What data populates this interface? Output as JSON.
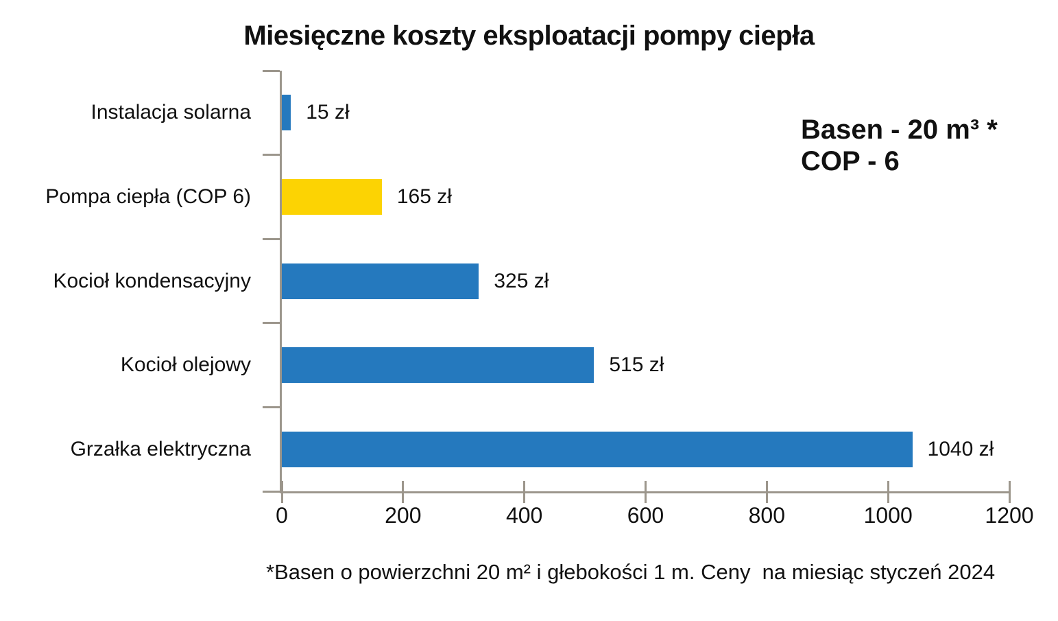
{
  "chart_data": {
    "type": "bar",
    "orientation": "horizontal",
    "title": "Miesięczne koszty eksploatacji pompy ciepła",
    "categories": [
      "Instalacja solarna",
      "Pompa ciepła (COP 6)",
      "Kocioł kondensacyjny",
      "Kocioł olejowy",
      "Grzałka elektryczna"
    ],
    "values": [
      15,
      165,
      325,
      515,
      1040
    ],
    "value_labels": [
      "15 zł",
      "165 zł",
      "325 zł",
      "515 zł",
      "1040 zł"
    ],
    "bar_colors": [
      "#2579BE",
      "#FCD303",
      "#2579BE",
      "#2579BE",
      "#2579BE"
    ],
    "default_bar_color": "#2579BE",
    "highlight_color": "#FCD303",
    "axis_color": "#9C968C",
    "text_color": "#111111",
    "xlabel": "",
    "ylabel": "",
    "xlim": [
      0,
      1200
    ],
    "x_ticks": [
      0,
      200,
      400,
      600,
      800,
      1000,
      1200
    ],
    "grid": false,
    "legend": false,
    "annotation": {
      "lines": [
        "Basen - 20 m³ *",
        "COP - 6"
      ]
    },
    "footnote": "*Basen o powierzchni 20 m² i głebokości 1 m. Ceny  na miesiąc styczeń 2024"
  }
}
